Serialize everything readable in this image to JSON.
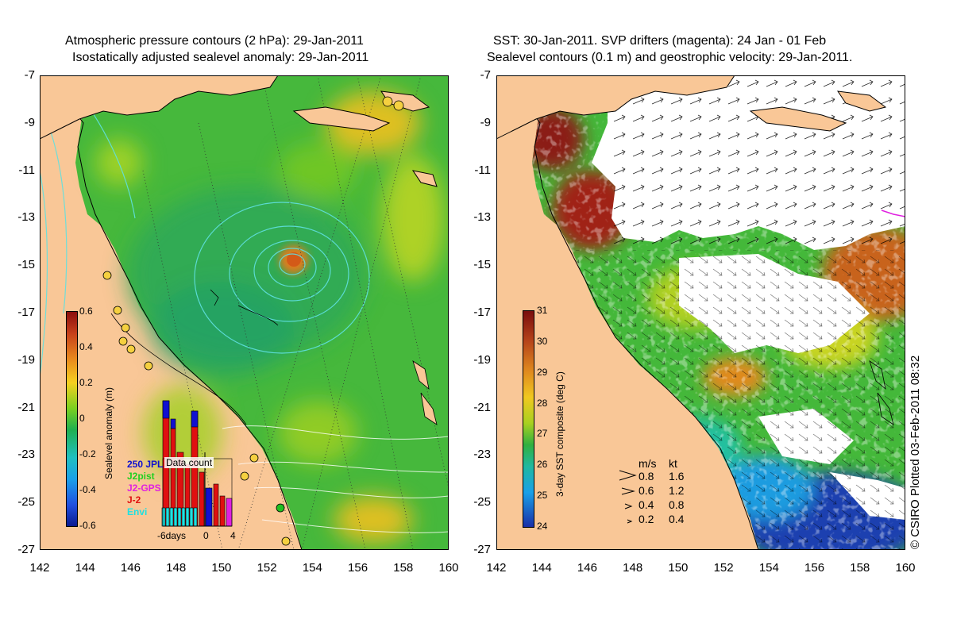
{
  "left_panel": {
    "title_line1": "Atmospheric pressure contours (2 hPa): 29-Jan-2011",
    "title_line2": "Isostatically adjusted sealevel anomaly: 29-Jan-2011",
    "colorbar_label": "Sealevel anomaly (m)",
    "colorbar_ticks": [
      "0.6",
      "0.4",
      "0.2",
      "0",
      "-0.2",
      "-0.4",
      "-0.6"
    ],
    "legend": {
      "title": "Data count",
      "entries": [
        {
          "label": "250 JPL",
          "color": "#1010d0"
        },
        {
          "label": "J2pist",
          "color": "#20d020"
        },
        {
          "label": "J2-GPS",
          "color": "#e020e0"
        },
        {
          "label": "J-2",
          "color": "#e01010"
        },
        {
          "label": "Envi",
          "color": "#20e0e0"
        }
      ],
      "axis_labels": [
        "-6days",
        "0",
        "4"
      ]
    }
  },
  "right_panel": {
    "title_line1": "SST: 30-Jan-2011. SVP drifters (magenta): 24 Jan - 01 Feb",
    "title_line2": "Sealevel contours (0.1 m) and geostrophic velocity: 29-Jan-2011.",
    "colorbar_label": "3-day SST composite (deg C)",
    "colorbar_ticks": [
      "31",
      "30",
      "29",
      "28",
      "27",
      "26",
      "25",
      "24"
    ],
    "velocity_header": {
      "ms": "m/s",
      "kt": "kt"
    },
    "velocity_rows": [
      {
        "ms": "0.8",
        "kt": "1.6"
      },
      {
        "ms": "0.6",
        "kt": "1.2"
      },
      {
        "ms": "0.4",
        "kt": "0.8"
      },
      {
        "ms": "0.2",
        "kt": "0.4"
      }
    ]
  },
  "axes": {
    "lat_ticks": [
      "-7",
      "-9",
      "-11",
      "-13",
      "-15",
      "-17",
      "-19",
      "-21",
      "-23",
      "-25",
      "-27"
    ],
    "lon_ticks": [
      "142",
      "144",
      "146",
      "148",
      "150",
      "152",
      "154",
      "156",
      "158",
      "160"
    ]
  },
  "credit": "© CSIRO Plotted 03-Feb-2011 08:32",
  "colors": {
    "land": "#f9c797",
    "ocean_mid": "#49bb3a",
    "ocean_low": "#2fae55",
    "anomaly_high": "#e38a1e",
    "sst_cold": "#1c3fb8",
    "sst_warm": "#b6441a",
    "contour": "#50e0e0",
    "drifter": "#e020e0"
  }
}
